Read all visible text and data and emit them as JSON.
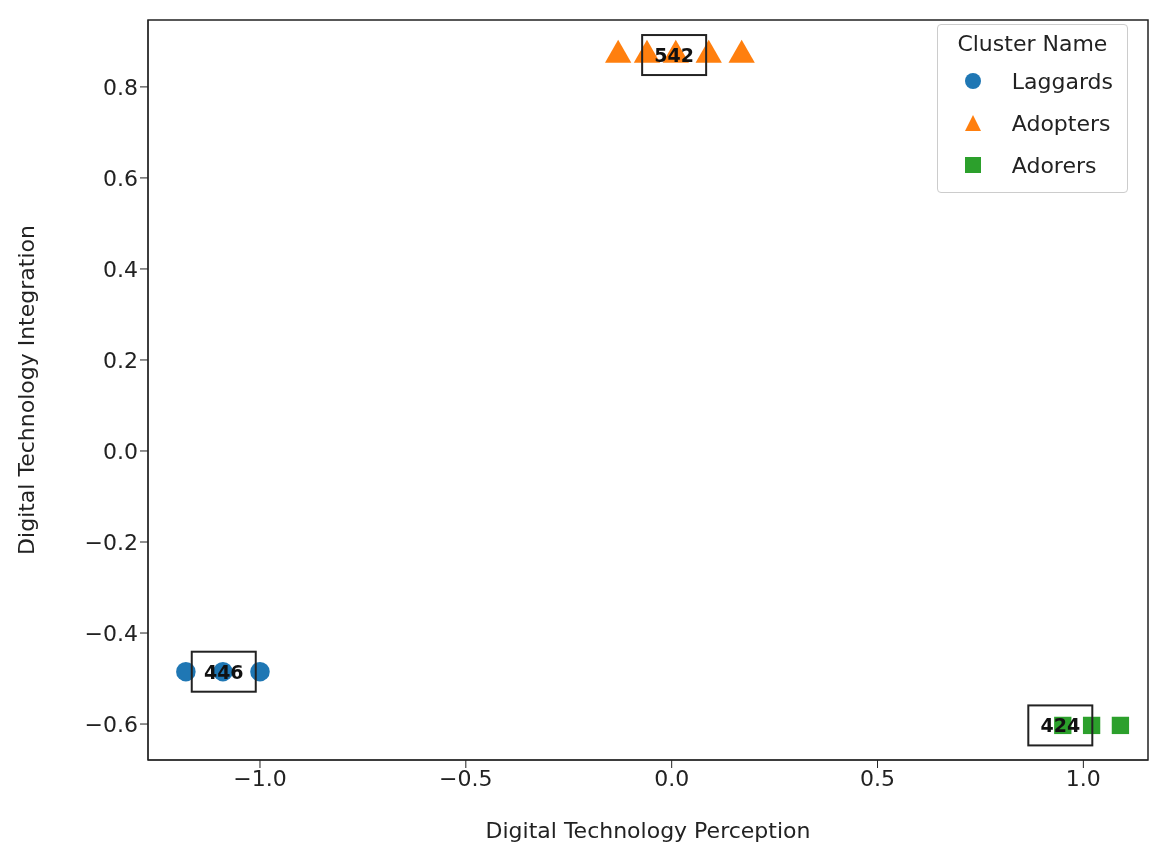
{
  "chart_data": {
    "type": "scatter",
    "xlabel": "Digital Technology Perception",
    "ylabel": "Digital Technology Integration",
    "legend_title": "Cluster Name",
    "legend": "top right",
    "grid": false,
    "xlim": [
      -1.272,
      1.157
    ],
    "ylim": [
      -0.679,
      0.947
    ],
    "xticks": [
      {
        "value": -1.0,
        "label": "−1.0"
      },
      {
        "value": -0.5,
        "label": "−0.5"
      },
      {
        "value": 0.0,
        "label": "0.0"
      },
      {
        "value": 0.5,
        "label": "0.5"
      },
      {
        "value": 1.0,
        "label": "1.0"
      }
    ],
    "yticks": [
      {
        "value": -0.6,
        "label": "−0.6"
      },
      {
        "value": -0.4,
        "label": "−0.4"
      },
      {
        "value": -0.2,
        "label": "−0.2"
      },
      {
        "value": 0.0,
        "label": "0.0"
      },
      {
        "value": 0.2,
        "label": "0.2"
      },
      {
        "value": 0.4,
        "label": "0.4"
      },
      {
        "value": 0.6,
        "label": "0.6"
      },
      {
        "value": 0.8,
        "label": "0.8"
      }
    ],
    "series": [
      {
        "name": "Laggards",
        "color": "#1f77b4",
        "marker": "circle",
        "x": [
          -1.18,
          -1.09,
          -1.0
        ],
        "values": [
          -0.485,
          -0.485,
          -0.485
        ]
      },
      {
        "name": "Adopters",
        "color": "#ff7f0e",
        "marker": "triangle",
        "x": [
          -0.13,
          -0.06,
          0.01,
          0.09,
          0.17
        ],
        "values": [
          0.87,
          0.87,
          0.87,
          0.87,
          0.87
        ]
      },
      {
        "name": "Adorers",
        "color": "#2ca02c",
        "marker": "square",
        "x": [
          0.95,
          1.02,
          1.09
        ],
        "values": [
          -0.603,
          -0.603,
          -0.603
        ]
      }
    ],
    "annotations": [
      {
        "text": "446",
        "x": -1.088,
        "y": -0.485
      },
      {
        "text": "542",
        "x": 0.006,
        "y": 0.87
      },
      {
        "text": "424",
        "x": 0.944,
        "y": -0.603
      }
    ]
  }
}
